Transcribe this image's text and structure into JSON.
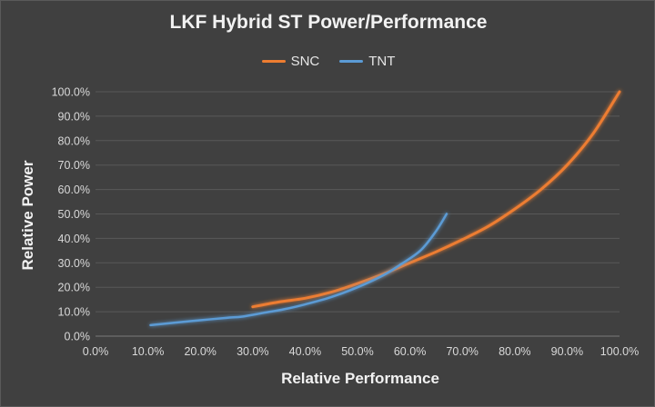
{
  "chart_data": {
    "type": "line",
    "title": "LKF Hybrid ST Power/Performance",
    "xlabel": "Relative Performance",
    "ylabel": "Relative Power",
    "xlim": [
      0,
      100
    ],
    "ylim": [
      0,
      100
    ],
    "x_ticks": [
      "0.0%",
      "10.0%",
      "20.0%",
      "30.0%",
      "40.0%",
      "50.0%",
      "60.0%",
      "70.0%",
      "80.0%",
      "90.0%",
      "100.0%"
    ],
    "y_ticks": [
      "0.0%",
      "10.0%",
      "20.0%",
      "30.0%",
      "40.0%",
      "50.0%",
      "60.0%",
      "70.0%",
      "80.0%",
      "90.0%",
      "100.0%"
    ],
    "grid": "horizontal",
    "legend": "top-center",
    "series": [
      {
        "name": "SNC",
        "color": "#ed7d31",
        "x": [
          30,
          35,
          40,
          45,
          50,
          55,
          60,
          65,
          70,
          75,
          80,
          85,
          90,
          95,
          100
        ],
        "y": [
          12,
          14,
          15.5,
          18,
          21.5,
          25.5,
          30,
          34.5,
          39.5,
          45,
          52,
          60,
          70,
          83,
          100
        ]
      },
      {
        "name": "TNT",
        "color": "#5b9bd5",
        "x": [
          10.5,
          15,
          20,
          25,
          28,
          32,
          36,
          40,
          45,
          50,
          55,
          58,
          62,
          65,
          67
        ],
        "y": [
          4.5,
          5.5,
          6.5,
          7.5,
          8,
          9.5,
          11,
          13,
          16,
          20,
          25,
          29,
          35,
          43,
          50
        ]
      }
    ]
  }
}
